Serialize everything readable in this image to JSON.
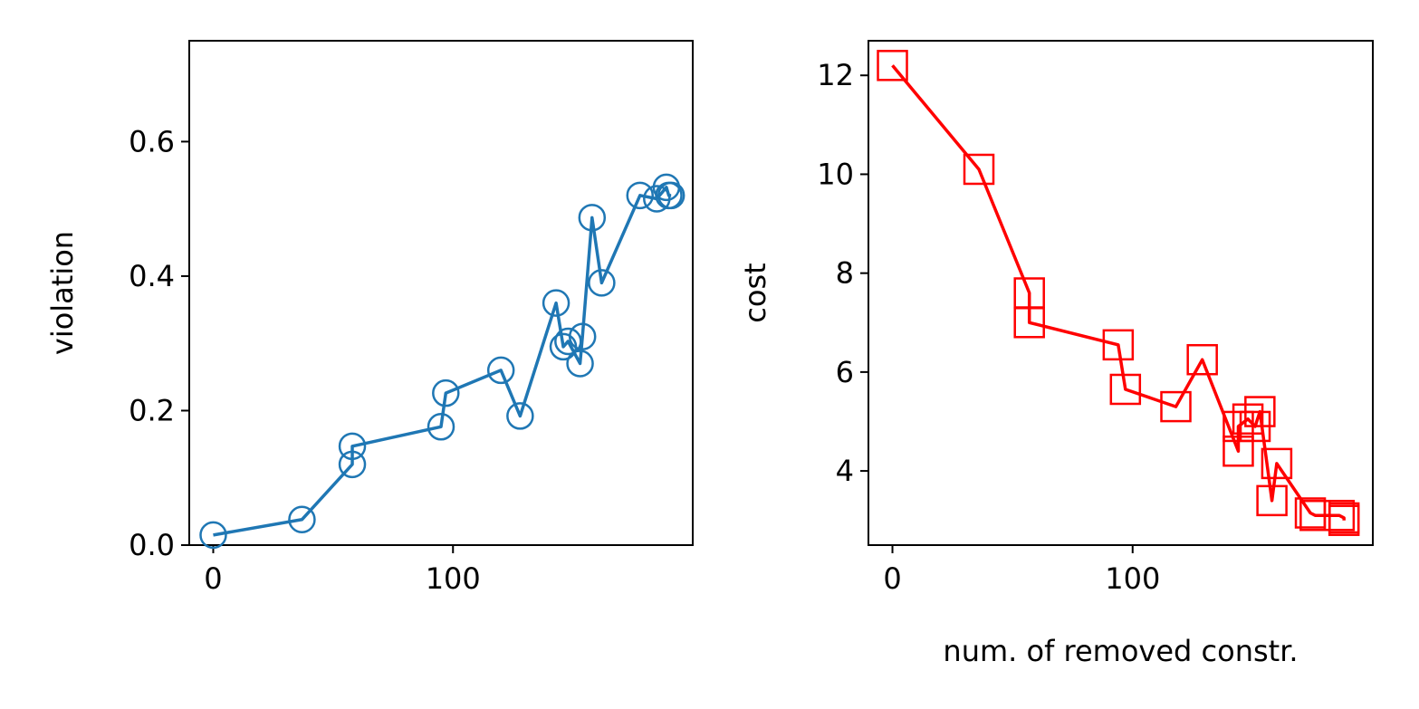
{
  "chart_data": [
    {
      "type": "line",
      "title": "",
      "xlabel": "",
      "ylabel": "violation",
      "xlim": [
        -10,
        200
      ],
      "ylim": [
        0,
        0.75
      ],
      "xticks": [
        0,
        100
      ],
      "yticks": [
        0.0,
        0.2,
        0.4,
        0.6
      ],
      "ytick_labels": [
        "0.0",
        "0.2",
        "0.4",
        "0.6"
      ],
      "xtick_labels": [
        "0",
        "100"
      ],
      "grid": false,
      "marker": "circle-open",
      "color": "#1f77b4",
      "series": [
        {
          "x": [
            0,
            37,
            58,
            58,
            95,
            97,
            120,
            128,
            143,
            146,
            148,
            153,
            154,
            158,
            162,
            178,
            185,
            189,
            190,
            191
          ],
          "y": [
            0.015,
            0.038,
            0.12,
            0.147,
            0.176,
            0.226,
            0.26,
            0.192,
            0.36,
            0.295,
            0.303,
            0.27,
            0.31,
            0.487,
            0.39,
            0.52,
            0.515,
            0.532,
            0.52,
            0.52
          ]
        }
      ]
    },
    {
      "type": "line",
      "title": "",
      "xlabel": "num. of removed constr.",
      "ylabel": "cost",
      "xlim": [
        -10,
        200
      ],
      "ylim": [
        2.5,
        12.7
      ],
      "xticks": [
        0,
        100
      ],
      "yticks": [
        4,
        6,
        8,
        10,
        12
      ],
      "ytick_labels": [
        "4",
        "6",
        "8",
        "10",
        "12"
      ],
      "xtick_labels": [
        "0",
        "100"
      ],
      "grid": false,
      "marker": "square-open",
      "color": "#ff0000",
      "series": [
        {
          "x": [
            0,
            36,
            57,
            57,
            94,
            97,
            118,
            129,
            144,
            144,
            148,
            151,
            153,
            158,
            160,
            174,
            176,
            186,
            188,
            188
          ],
          "y": [
            12.2,
            10.1,
            7.6,
            7.0,
            6.55,
            5.65,
            5.3,
            6.25,
            4.4,
            4.9,
            5.05,
            4.9,
            5.2,
            3.4,
            4.15,
            3.15,
            3.1,
            3.1,
            3.05,
            3.0
          ]
        }
      ]
    }
  ]
}
